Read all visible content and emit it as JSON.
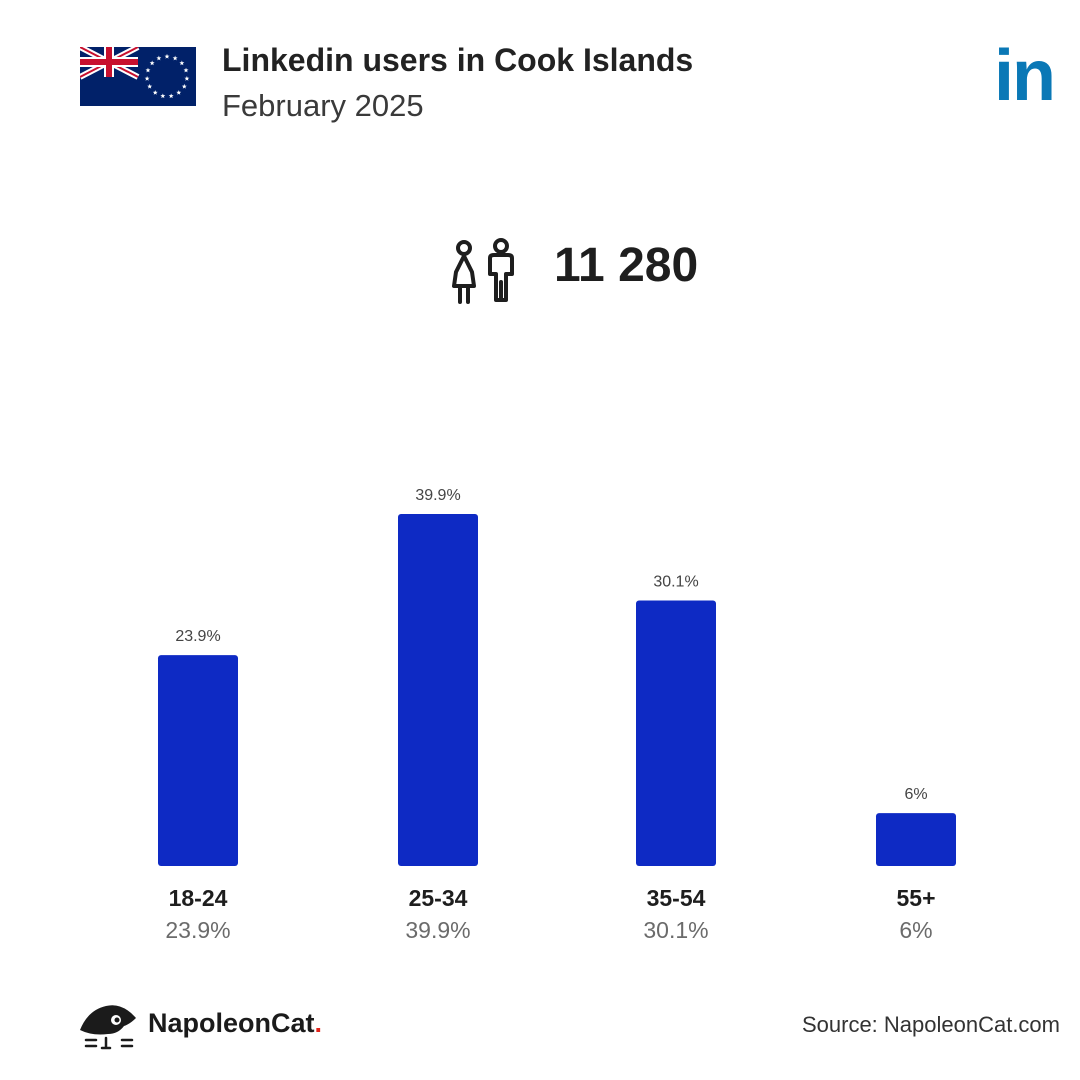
{
  "header": {
    "title": "Linkedin users in Cook Islands",
    "subtitle": "February 2025",
    "flag_icon": "cook-islands-flag-icon",
    "brand_logo_icon": "linkedin-logo-icon",
    "brand_logo_text": "in",
    "brand_color": "#0a78b6"
  },
  "summary": {
    "icon": "users-icon",
    "total_users": "11 280"
  },
  "chart_data": {
    "type": "bar",
    "categories": [
      "18-24",
      "25-34",
      "35-54",
      "55+"
    ],
    "values": [
      23.9,
      39.9,
      30.1,
      6
    ],
    "value_labels": [
      "23.9%",
      "39.9%",
      "30.1%",
      "6%"
    ],
    "bar_color": "#0e2ac4",
    "ylim": [
      0,
      39.9
    ],
    "grid": false
  },
  "footer": {
    "brand_name": "NapoleonCat",
    "brand_dot": ".",
    "brand_icon": "napoleoncat-logo-icon",
    "source": "Source: NapoleonCat.com"
  }
}
